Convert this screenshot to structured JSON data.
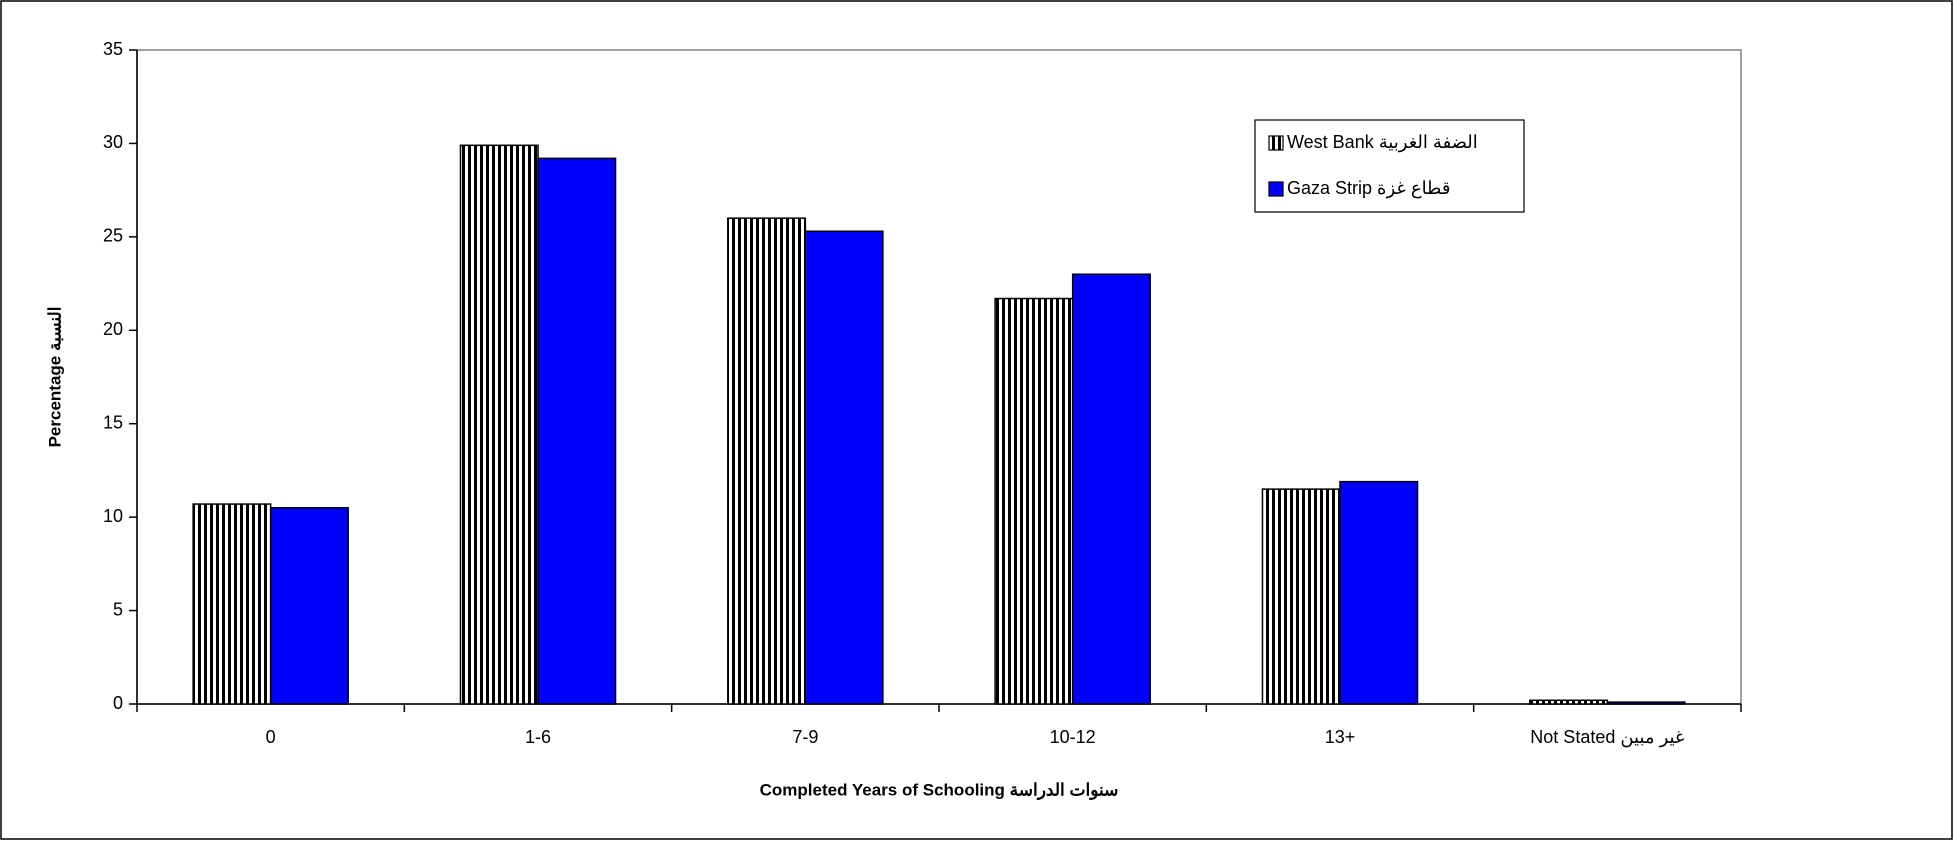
{
  "chart_data": {
    "type": "bar",
    "categories": [
      "0",
      "1-6",
      "7-9",
      "10-12",
      "13+",
      "Not Stated   غير مبين"
    ],
    "series": [
      {
        "name": "West Bank  الضفة الغربية",
        "color": "#000000",
        "pattern": "vertical-stripes",
        "values": [
          10.7,
          29.9,
          26.0,
          21.7,
          11.5,
          0.2
        ]
      },
      {
        "name": "Gaza Strip      قطاع غزة",
        "color": "#0000ff",
        "values": [
          10.5,
          29.2,
          25.3,
          23.0,
          11.9,
          0.1
        ]
      }
    ],
    "x_label": "Completed Years of Schooling  سنوات الدراسة",
    "y_label": "Percentage   النسبة",
    "ylim": [
      0,
      35
    ],
    "yticks": [
      0,
      5,
      10,
      15,
      20,
      25,
      30,
      35
    ],
    "legend": "upper right",
    "grid": false
  }
}
